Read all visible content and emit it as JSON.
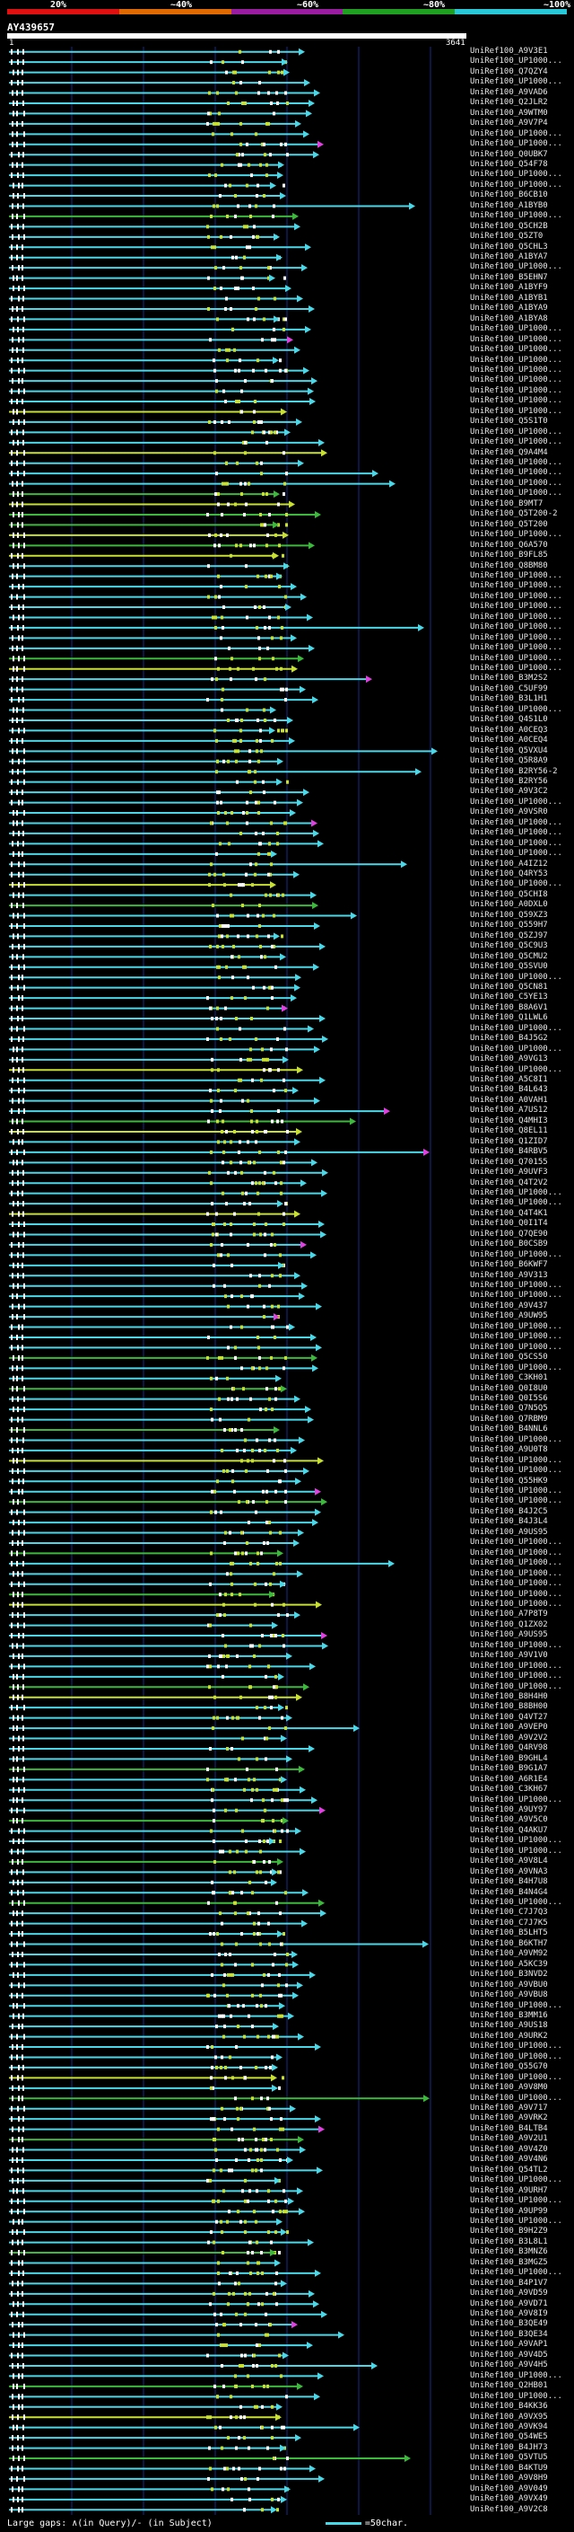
{
  "legend": {
    "stops": [
      {
        "label": "20%",
        "color": "#e01010"
      },
      {
        "label": "~40%",
        "color": "#e06a00"
      },
      {
        "label": "~60%",
        "color": "#9a1ca0"
      },
      {
        "label": "~80%",
        "color": "#20a020"
      },
      {
        "label": "~100%",
        "color": "#28c8d8"
      }
    ]
  },
  "query": {
    "title": "AY439657",
    "start": "1",
    "end": "3641"
  },
  "colors": {
    "cyan": "#4ad8e8",
    "green": "#3cb83c",
    "yellowgreen": "#c8e030",
    "magenta": "#e040e0",
    "grid": "#1a2a8a"
  },
  "hits": [
    "UniRef100_A9V3E1",
    "UniRef100_UP1000...",
    "UniRef100_Q7QZY4",
    "UniRef100_UP1000...",
    "UniRef100_A9VAD6",
    "UniRef100_Q2JLR2",
    "UniRef100_A9WTM0",
    "UniRef100_A9V7P4",
    "UniRef100_UP1000...",
    "UniRef100_UP1000...",
    "UniRef100_Q0UBK7",
    "UniRef100_Q54F78",
    "UniRef100_UP1000...",
    "UniRef100_UP1000...",
    "UniRef100_B6CB10",
    "UniRef100_A1BYB0",
    "UniRef100_UP1000...",
    "UniRef100_Q5CH2B",
    "UniRef100_Q5ZT0",
    "UniRef100_Q5CHL3",
    "UniRef100_A1BYA7",
    "UniRef100_UP1000...",
    "UniRef100_B5EHN7",
    "UniRef100_A1BYF9",
    "UniRef100_A1BYB1",
    "UniRef100_A1BYA9",
    "UniRef100_A1BYA8",
    "UniRef100_UP1000...",
    "UniRef100_UP1000...",
    "UniRef100_UP1000...",
    "UniRef100_UP1000...",
    "UniRef100_UP1000...",
    "UniRef100_UP1000...",
    "UniRef100_UP1000...",
    "UniRef100_UP1000...",
    "UniRef100_UP1000...",
    "UniRef100_Q5S1T0",
    "UniRef100_UP1000...",
    "UniRef100_UP1000...",
    "UniRef100_Q9A4M4",
    "UniRef100_UP1000...",
    "UniRef100_UP1000...",
    "UniRef100_UP1000...",
    "UniRef100_UP1000...",
    "UniRef100_B9MT7",
    "UniRef100_Q5T200-2",
    "UniRef100_Q5T200",
    "UniRef100_UP1000...",
    "UniRef100_Q6A570",
    "UniRef100_B9FL85",
    "UniRef100_Q8BM80",
    "UniRef100_UP1000...",
    "UniRef100_UP1000...",
    "UniRef100_UP1000...",
    "UniRef100_UP1000...",
    "UniRef100_UP1000...",
    "UniRef100_UP1000...",
    "UniRef100_UP1000...",
    "UniRef100_UP1000...",
    "UniRef100_UP1000...",
    "UniRef100_UP1000...",
    "UniRef100_B3M2S2",
    "UniRef100_C5UF99",
    "UniRef100_B3L1H1",
    "UniRef100_UP1000...",
    "UniRef100_Q4S1L0",
    "UniRef100_A0CEQ3",
    "UniRef100_A0CEQ4",
    "UniRef100_Q5VXU4",
    "UniRef100_Q5R8A9",
    "UniRef100_B2RY56-2",
    "UniRef100_B2RY56",
    "UniRef100_A9V3C2",
    "UniRef100_UP1000...",
    "UniRef100_A9VSR0",
    "UniRef100_UP1000...",
    "UniRef100_UP1000...",
    "UniRef100_UP1000...",
    "UniRef100_UP1000...",
    "UniRef100_A4IZ12",
    "UniRef100_Q4RY53",
    "UniRef100_UP1000...",
    "UniRef100_Q5CHI8",
    "UniRef100_A0DXL0",
    "UniRef100_Q59XZ3",
    "UniRef100_Q559H7",
    "UniRef100_Q5ZJ97",
    "UniRef100_Q5C9U3",
    "UniRef100_Q5CMU2",
    "UniRef100_Q5SVU0",
    "UniRef100_UP1000...",
    "UniRef100_Q5CN81",
    "UniRef100_C5YE13",
    "UniRef100_B8A6V1",
    "UniRef100_Q1LWL6",
    "UniRef100_UP1000...",
    "UniRef100_B4J5G2",
    "UniRef100_UP1000...",
    "UniRef100_A9VG13",
    "UniRef100_UP1000...",
    "UniRef100_A5C8I1",
    "UniRef100_B4L643",
    "UniRef100_A0VAH1",
    "UniRef100_A7US12",
    "UniRef100_Q4MHI3",
    "UniRef100_Q8EL11",
    "UniRef100_Q1ZID7",
    "UniRef100_B4RBV5",
    "UniRef100_Q70155",
    "UniRef100_A9UVF3",
    "UniRef100_Q4T2V2",
    "UniRef100_UP1000...",
    "UniRef100_UP1000...",
    "UniRef100_Q4T4K1",
    "UniRef100_Q0I1T4",
    "UniRef100_Q7QE90",
    "UniRef100_B0CSB9",
    "UniRef100_UP1000...",
    "UniRef100_B6KWF7",
    "UniRef100_A9V313",
    "UniRef100_UP1000...",
    "UniRef100_UP1000...",
    "UniRef100_A9V437",
    "UniRef100_A9UW95",
    "UniRef100_UP1000...",
    "UniRef100_UP1000...",
    "UniRef100_UP1000...",
    "UniRef100_Q5CS50",
    "UniRef100_UP1000...",
    "UniRef100_C3KH01",
    "UniRef100_Q0I8U0",
    "UniRef100_Q0I5S6",
    "UniRef100_Q7N5Q5",
    "UniRef100_Q7RBM9",
    "UniRef100_B4NNL6",
    "UniRef100_UP1000...",
    "UniRef100_A9U0T8",
    "UniRef100_UP1000...",
    "UniRef100_UP1000...",
    "UniRef100_Q55HK9",
    "UniRef100_UP1000...",
    "UniRef100_UP1000...",
    "UniRef100_B4J2C5",
    "UniRef100_B4J3L4",
    "UniRef100_A9US95",
    "UniRef100_UP1000...",
    "UniRef100_UP1000...",
    "UniRef100_UP1000...",
    "UniRef100_UP1000...",
    "UniRef100_UP1000...",
    "UniRef100_UP1000...",
    "UniRef100_UP1000...",
    "UniRef100_A7P8T9",
    "UniRef100_Q1ZX02",
    "UniRef100_A9US95",
    "UniRef100_UP1000...",
    "UniRef100_A9V1V0",
    "UniRef100_UP1000...",
    "UniRef100_UP1000...",
    "UniRef100_UP1000...",
    "UniRef100_B8H4H0",
    "UniRef100_B8BH00",
    "UniRef100_Q4VT27",
    "UniRef100_A9VEP0",
    "UniRef100_A9V2V2",
    "UniRef100_Q4RV98",
    "UniRef100_B9GHL4",
    "UniRef100_B9G1A7",
    "UniRef100_A6R1E4",
    "UniRef100_C3KH67",
    "UniRef100_UP1000...",
    "UniRef100_A9UY97",
    "UniRef100_A9V5C0",
    "UniRef100_Q4AKU7",
    "UniRef100_UP1000...",
    "UniRef100_UP1000...",
    "UniRef100_A9V8L4",
    "UniRef100_A9VNA3",
    "UniRef100_B4H7U8",
    "UniRef100_B4N4G4",
    "UniRef100_UP1000...",
    "UniRef100_C7J7Q3",
    "UniRef100_C7J7K5",
    "UniRef100_B5LHT5",
    "UniRef100_B6KTH7",
    "UniRef100_A9VM92",
    "UniRef100_A5KC39",
    "UniRef100_B3NVD2",
    "UniRef100_A9VBU0",
    "UniRef100_A9VBU8",
    "UniRef100_UP1000...",
    "UniRef100_B3MM16",
    "UniRef100_A9US18",
    "UniRef100_A9URK2",
    "UniRef100_UP1000...",
    "UniRef100_UP1000...",
    "UniRef100_Q55G70",
    "UniRef100_UP1000...",
    "UniRef100_A9V8M0",
    "UniRef100_UP1000...",
    "UniRef100_A9V717",
    "UniRef100_A9VRK2",
    "UniRef100_B4LTB4",
    "UniRef100_A9V2U1",
    "UniRef100_A9V4Z0",
    "UniRef100_A9V4N6",
    "UniRef100_Q54TL2",
    "UniRef100_UP1000...",
    "UniRef100_A9URH7",
    "UniRef100_UP1000...",
    "UniRef100_A9UP99",
    "UniRef100_UP1000...",
    "UniRef100_B9H2Z9",
    "UniRef100_B3L8L1",
    "UniRef100_B3MNZ6",
    "UniRef100_B3MGZ5",
    "UniRef100_UP1000...",
    "UniRef100_B4P1V7",
    "UniRef100_A9VD59",
    "UniRef100_A9VD71",
    "UniRef100_A9V8I9",
    "UniRef100_B3QE49",
    "UniRef100_B3QE34",
    "UniRef100_A9VAP1",
    "UniRef100_A9V4D5",
    "UniRef100_A9V4H5",
    "UniRef100_UP1000...",
    "UniRef100_Q2HB01",
    "UniRef100_UP1000...",
    "UniRef100_B4KK36",
    "UniRef100_A9VX95",
    "UniRef100_A9VK94",
    "UniRef100_Q54WE5",
    "UniRef100_B4JH73",
    "UniRef100_Q5VTU5",
    "UniRef100_B4KTU9",
    "UniRef100_A9V8H9",
    "UniRef100_A9V049",
    "UniRef100_A9VX49",
    "UniRef100_A9V2C8"
  ],
  "footer": {
    "large_gaps": "Large gaps:",
    "gap_symbols": "∧(in Query)/- (in Subject)",
    "scale": "=50char."
  }
}
